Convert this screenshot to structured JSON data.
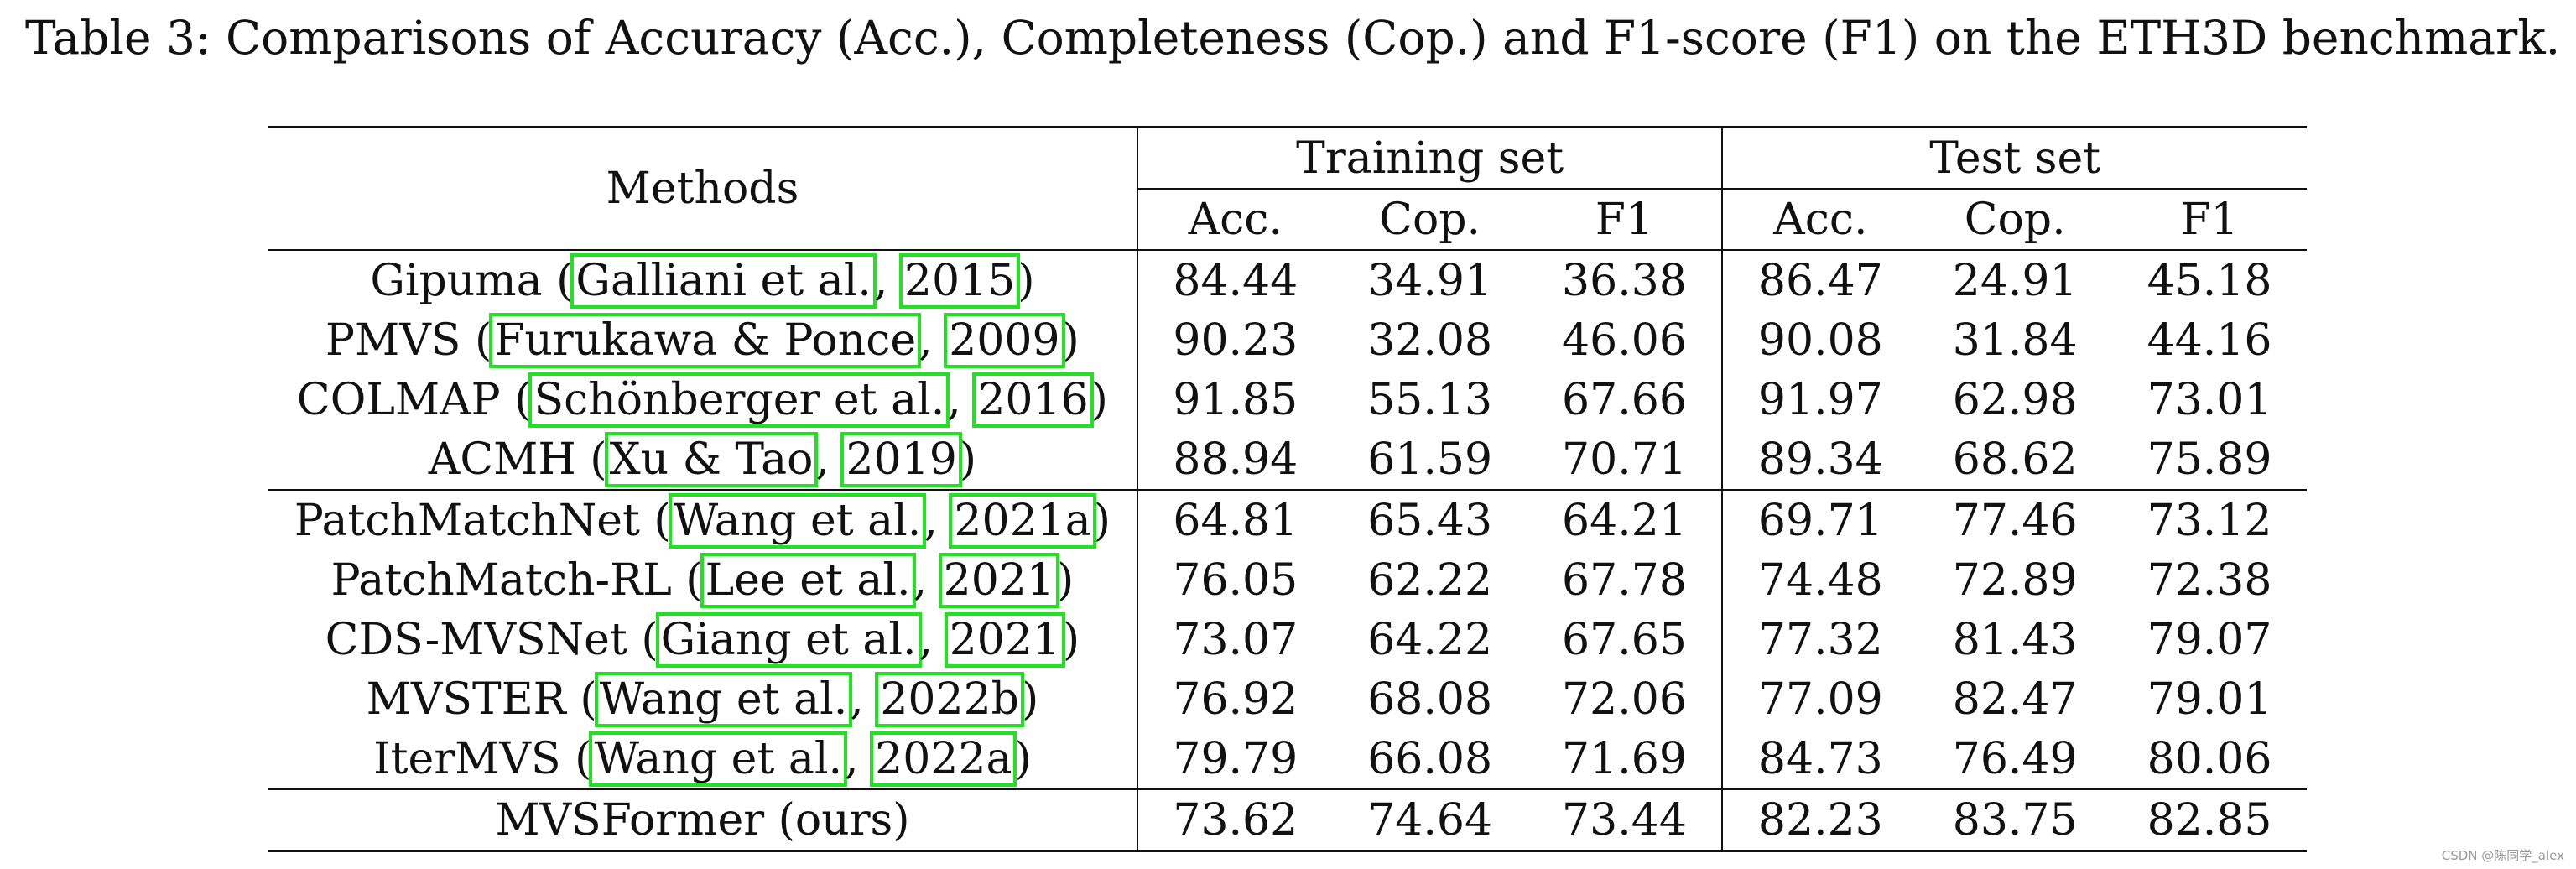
{
  "caption": "Table 3: Comparisons of Accuracy (Acc.), Completeness (Cop.) and F1-score (F1) on the ETH3D benchmark.",
  "header": {
    "methods": "Methods",
    "training": "Training set",
    "test": "Test set",
    "acc": "Acc.",
    "cop": "Cop.",
    "f1": "F1"
  },
  "rows": [
    {
      "name": "Gipuma",
      "author": "Galliani et al.",
      "year": "2015",
      "v": [
        "84.44",
        "34.91",
        "36.38",
        "86.47",
        "24.91",
        "45.18"
      ]
    },
    {
      "name": "PMVS",
      "author": "Furukawa & Ponce",
      "year": "2009",
      "v": [
        "90.23",
        "32.08",
        "46.06",
        "90.08",
        "31.84",
        "44.16"
      ]
    },
    {
      "name": "COLMAP",
      "author": "Schönberger et al.",
      "year": "2016",
      "v": [
        "91.85",
        "55.13",
        "67.66",
        "91.97",
        "62.98",
        "73.01"
      ]
    },
    {
      "name": "ACMH",
      "author": "Xu & Tao",
      "year": "2019",
      "v": [
        "88.94",
        "61.59",
        "70.71",
        "89.34",
        "68.62",
        "75.89"
      ]
    },
    {
      "name": "PatchMatchNet",
      "author": "Wang et al.",
      "year": "2021a",
      "v": [
        "64.81",
        "65.43",
        "64.21",
        "69.71",
        "77.46",
        "73.12"
      ]
    },
    {
      "name": "PatchMatch-RL",
      "author": "Lee et al.",
      "year": "2021",
      "v": [
        "76.05",
        "62.22",
        "67.78",
        "74.48",
        "72.89",
        "72.38"
      ]
    },
    {
      "name": "CDS-MVSNet",
      "author": "Giang et al.",
      "year": "2021",
      "v": [
        "73.07",
        "64.22",
        "67.65",
        "77.32",
        "81.43",
        "79.07"
      ]
    },
    {
      "name": "MVSTER",
      "author": "Wang et al.",
      "year": "2022b",
      "v": [
        "76.92",
        "68.08",
        "72.06",
        "77.09",
        "82.47",
        "79.01"
      ]
    },
    {
      "name": "IterMVS",
      "author": "Wang et al.",
      "year": "2022a",
      "v": [
        "79.79",
        "66.08",
        "71.69",
        "84.73",
        "76.49",
        "80.06"
      ]
    },
    {
      "name": "MVSFormer (ours)",
      "v": [
        "73.62",
        "74.64",
        "73.44",
        "82.23",
        "83.75",
        "82.85"
      ]
    }
  ],
  "watermark": "CSDN @陈同学_alex"
}
